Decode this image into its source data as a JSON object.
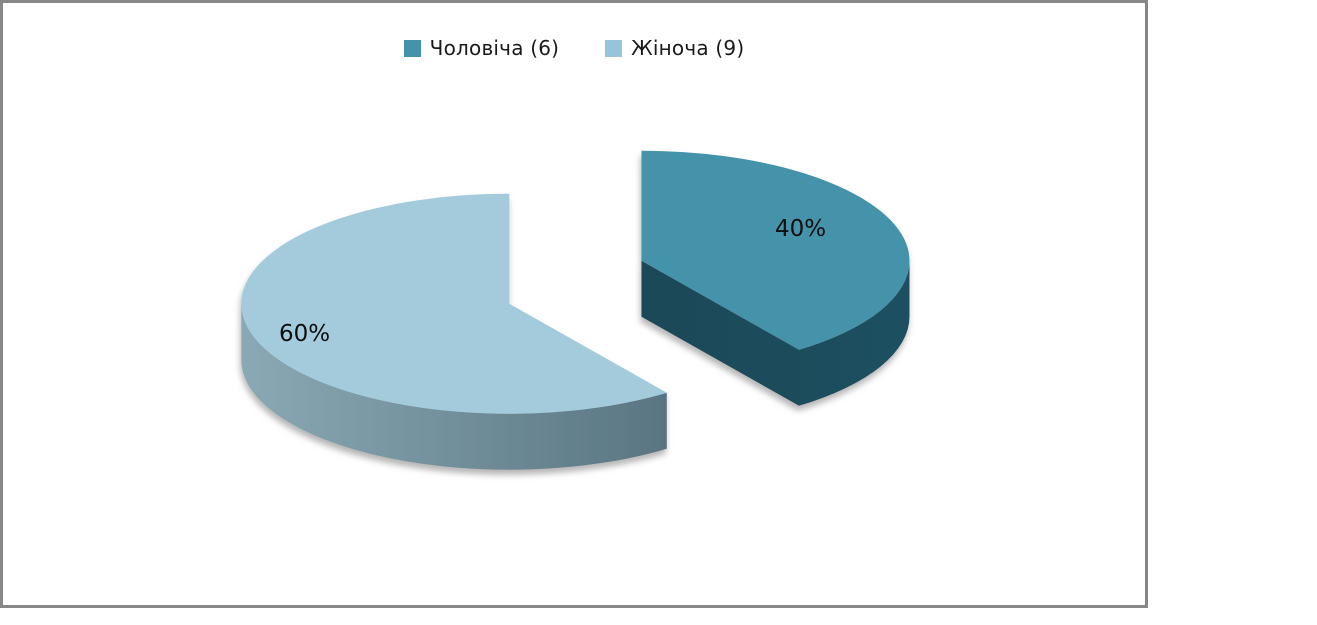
{
  "frame": {
    "border_color": "#878787",
    "background_color": "#ffffff"
  },
  "chart_data": {
    "type": "pie",
    "style": "3d-exploded",
    "title": "",
    "legend_position": "top",
    "start_angle_deg": 0,
    "clockwise": true,
    "total": 15,
    "text_color": "#1a1a1a",
    "label_color": "#0d0d0d",
    "series": [
      {
        "name": "Чоловіча",
        "count": 6,
        "value": 40,
        "pct_label": "40%",
        "legend_label": "Чоловіча (6)",
        "color_top": "#4592ab",
        "color_side_from": "#1c4150",
        "color_side_to": "#1f5060",
        "legend_marker_color": "#4592ab"
      },
      {
        "name": "Жіноча",
        "count": 9,
        "value": 60,
        "pct_label": "60%",
        "legend_label": "Жіноча (9)",
        "color_top": "#a3cbdc",
        "color_side_from": "#8aa9b5",
        "color_side_to": "#4c6874",
        "legend_marker_color": "#96c4d8"
      }
    ]
  }
}
